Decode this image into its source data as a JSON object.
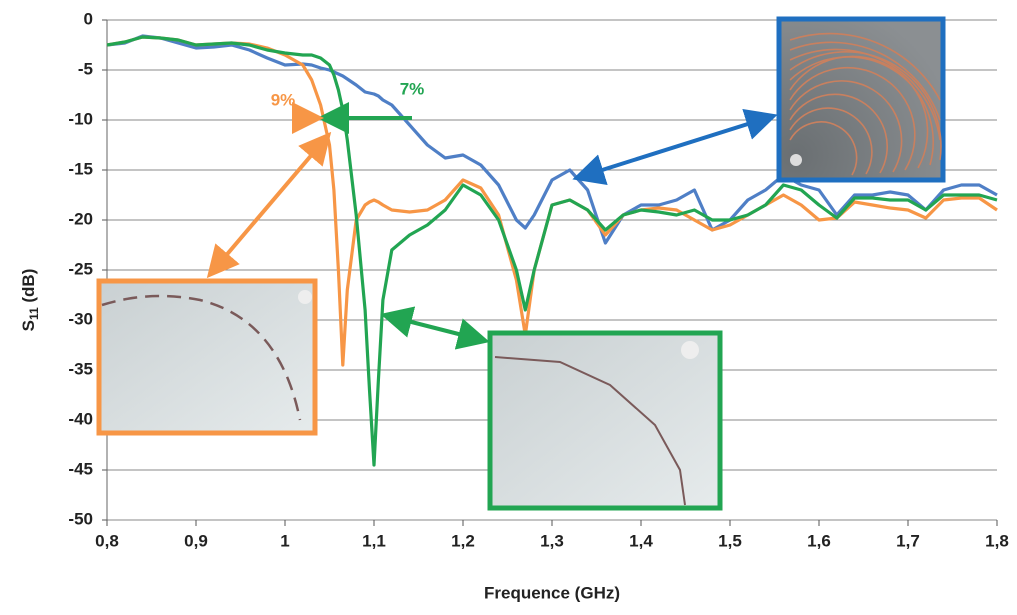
{
  "chart_data": {
    "type": "line",
    "ylabel": [
      "S",
      "11",
      " (dB)"
    ],
    "xlabel": "Frequence (GHz)",
    "annotations": [
      "9%",
      "7%"
    ],
    "xlim": [
      0.8,
      1.8
    ],
    "xticks": [
      {
        "value": 0.8,
        "label": "0,8"
      },
      {
        "value": 0.9,
        "label": "0,9"
      },
      1,
      {
        "value": 1.1,
        "label": "1,1"
      },
      {
        "value": 1.2,
        "label": "1,2"
      },
      {
        "value": 1.3,
        "label": "1,3"
      },
      {
        "value": 1.4,
        "label": "1,4"
      },
      {
        "value": 1.5,
        "label": "1,5"
      },
      {
        "value": 1.6,
        "label": "1,6"
      },
      {
        "value": 1.7,
        "label": "1,7"
      },
      {
        "value": 1.8,
        "label": "1,8"
      }
    ],
    "ylim": [
      -50,
      0
    ],
    "yticks": [
      0,
      -5,
      -10,
      -15,
      -20,
      -25,
      -30,
      -35,
      -40,
      -45,
      -50
    ],
    "grid": true,
    "x": [
      0.8,
      0.82,
      0.84,
      0.86,
      0.88,
      0.9,
      0.92,
      0.94,
      0.96,
      0.98,
      1.0,
      1.02,
      1.03,
      1.04,
      1.05,
      1.055,
      1.06,
      1.065,
      1.07,
      1.08,
      1.09,
      1.095,
      1.1,
      1.105,
      1.11,
      1.12,
      1.14,
      1.16,
      1.18,
      1.2,
      1.22,
      1.24,
      1.26,
      1.27,
      1.28,
      1.3,
      1.32,
      1.34,
      1.36,
      1.38,
      1.4,
      1.42,
      1.44,
      1.46,
      1.48,
      1.5,
      1.52,
      1.54,
      1.56,
      1.58,
      1.6,
      1.62,
      1.64,
      1.66,
      1.68,
      1.7,
      1.72,
      1.74,
      1.76,
      1.78,
      1.8
    ],
    "series": [
      {
        "color": "#4f7fc6",
        "values": [
          -2.5,
          -2.3,
          -1.6,
          -1.8,
          -2.3,
          -2.8,
          -2.7,
          -2.5,
          -3.0,
          -3.8,
          -4.5,
          -4.4,
          -4.5,
          -4.8,
          -5.0,
          -5.2,
          -5.4,
          -5.6,
          -5.9,
          -6.5,
          -7.2,
          -7.3,
          -7.4,
          -7.6,
          -8.0,
          -8.5,
          -10.5,
          -12.5,
          -13.8,
          -13.5,
          -14.5,
          -16.5,
          -20.0,
          -20.8,
          -19.5,
          -16.0,
          -15.0,
          -17.0,
          -22.3,
          -19.5,
          -18.5,
          -18.5,
          -18.0,
          -17.0,
          -21.0,
          -20.0,
          -18.0,
          -17.0,
          -15.5,
          -16.5,
          -17.0,
          -19.5,
          -17.5,
          -17.5,
          -17.2,
          -17.5,
          -19.0,
          -17.0,
          -16.5,
          -16.5,
          -17.5
        ]
      },
      {
        "color": "#f79646",
        "values": [
          -2.5,
          -2.2,
          -1.7,
          -1.8,
          -2.0,
          -2.5,
          -2.4,
          -2.3,
          -2.4,
          -2.8,
          -3.5,
          -4.5,
          -6.0,
          -8.5,
          -12.5,
          -17,
          -25,
          -34.5,
          -27,
          -20,
          -18.5,
          -18.2,
          -18.0,
          -18.2,
          -18.5,
          -19.0,
          -19.2,
          -19.0,
          -18.0,
          -16.0,
          -16.8,
          -19.5,
          -26.0,
          -31.5,
          -25,
          -18.5,
          -18.0,
          -19.0,
          -21.5,
          -19.5,
          -19.0,
          -18.8,
          -19.0,
          -20.0,
          -21.0,
          -20.5,
          -19.5,
          -18.5,
          -17.5,
          -18.5,
          -20.0,
          -19.8,
          -18.2,
          -18.5,
          -18.8,
          -19.0,
          -19.8,
          -18.0,
          -17.8,
          -17.8,
          -19.0
        ]
      },
      {
        "color": "#22a552",
        "values": [
          -2.5,
          -2.2,
          -1.7,
          -1.8,
          -2.0,
          -2.5,
          -2.4,
          -2.3,
          -2.5,
          -3.0,
          -3.3,
          -3.5,
          -3.5,
          -3.8,
          -4.5,
          -5.5,
          -7.0,
          -9.0,
          -12.0,
          -19.5,
          -29,
          -37,
          -44.5,
          -36,
          -28,
          -23,
          -21.5,
          -20.5,
          -19.0,
          -16.5,
          -17.5,
          -20.0,
          -25.0,
          -29.0,
          -25,
          -18.5,
          -18.0,
          -19.0,
          -21.0,
          -19.5,
          -19.0,
          -19.2,
          -19.5,
          -19.0,
          -20.0,
          -20.0,
          -19.5,
          -18.5,
          -16.5,
          -17.0,
          -18.5,
          -19.8,
          -17.8,
          -17.8,
          -18.0,
          -18.0,
          -19.0,
          -17.5,
          -17.5,
          -17.5,
          -18.0
        ]
      }
    ]
  }
}
